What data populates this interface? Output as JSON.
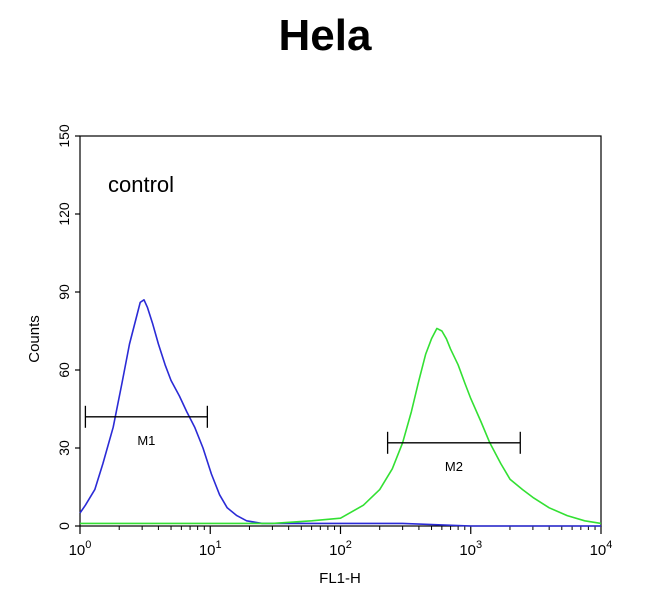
{
  "chart_data": {
    "type": "line",
    "title": "Hela",
    "xlabel": "FL1-H",
    "ylabel": "Counts",
    "xscale": "log",
    "xlim": [
      1,
      10000
    ],
    "ylim": [
      0,
      150
    ],
    "x_ticks": [
      {
        "base": "10",
        "exp": "0"
      },
      {
        "base": "10",
        "exp": "1"
      },
      {
        "base": "10",
        "exp": "2"
      },
      {
        "base": "10",
        "exp": "3"
      },
      {
        "base": "10",
        "exp": "4"
      }
    ],
    "y_ticks": [
      "0",
      "30",
      "60",
      "90",
      "120",
      "150"
    ],
    "grid": false,
    "annotation": "control",
    "series": [
      {
        "color": "#2b2bd6",
        "x": [
          1,
          1.1,
          1.3,
          1.5,
          1.8,
          2.1,
          2.4,
          2.7,
          2.9,
          3.1,
          3.3,
          3.6,
          4.0,
          4.5,
          5.0,
          5.8,
          6.6,
          7.6,
          8.8,
          10.2,
          11.8,
          13.5,
          16,
          19,
          25,
          40,
          100,
          300,
          1000,
          3000,
          10000
        ],
        "y": [
          5,
          8,
          14,
          24,
          38,
          55,
          70,
          80,
          86,
          87,
          84,
          78,
          70,
          62,
          56,
          50,
          44,
          38,
          30,
          20,
          12,
          7,
          4,
          2,
          1,
          1,
          1,
          1,
          0,
          0,
          0
        ]
      },
      {
        "color": "#33e033",
        "x": [
          1,
          3,
          10,
          30,
          60,
          100,
          150,
          200,
          250,
          300,
          350,
          400,
          450,
          500,
          550,
          600,
          650,
          700,
          800,
          900,
          1000,
          1200,
          1400,
          1700,
          2000,
          2500,
          3000,
          4000,
          5500,
          7500,
          10000
        ],
        "y": [
          1,
          1,
          1,
          1,
          2,
          3,
          8,
          14,
          22,
          32,
          44,
          56,
          66,
          72,
          76,
          75,
          72,
          68,
          62,
          55,
          49,
          40,
          32,
          24,
          18,
          14,
          11,
          7,
          4,
          2,
          1
        ]
      }
    ],
    "markers": [
      {
        "label": "M1",
        "x_start": 1.1,
        "x_end": 9.5,
        "y": 42
      },
      {
        "label": "M2",
        "x_start": 230,
        "x_end": 2400,
        "y": 32
      }
    ]
  }
}
